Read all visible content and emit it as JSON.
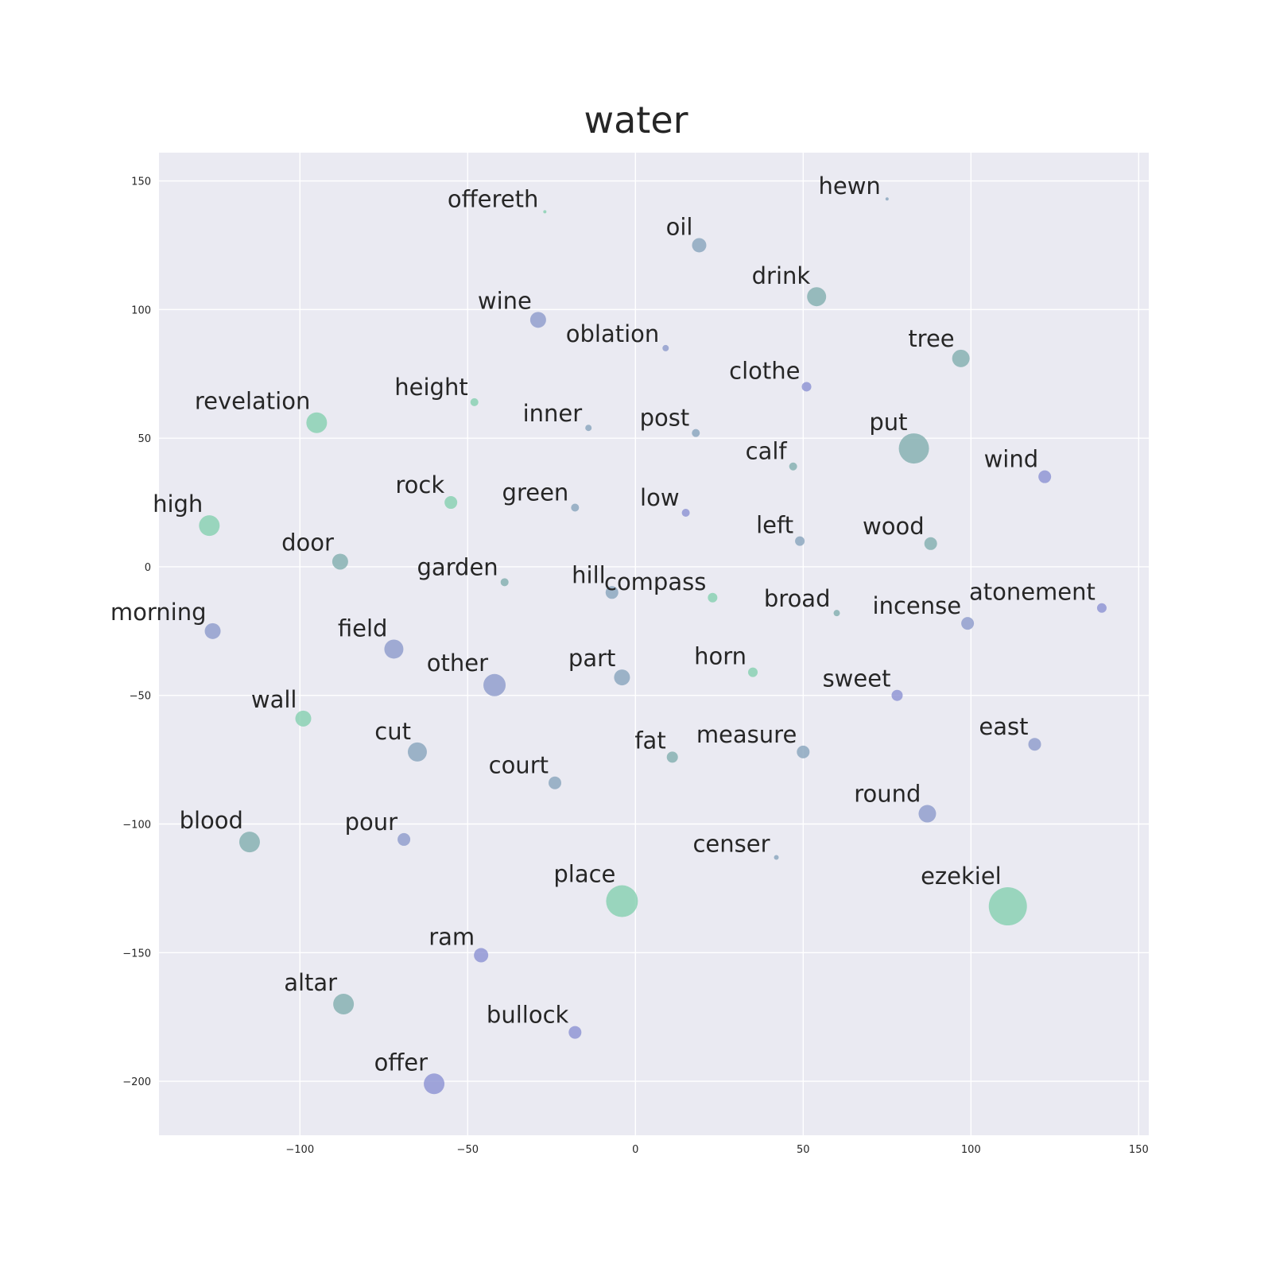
{
  "chart_data": {
    "type": "scatter",
    "title": "water",
    "xlabel": "",
    "ylabel": "",
    "xlim": [
      -142,
      153
    ],
    "ylim": [
      -221,
      161
    ],
    "xticks": [
      -100,
      -50,
      0,
      50,
      100,
      150
    ],
    "yticks": [
      -200,
      -150,
      -100,
      -50,
      0,
      50,
      100,
      150
    ],
    "grid": true,
    "background": "#eaeaf2",
    "palette": {
      "green": "#88d1b1",
      "teal": "#84b0b0",
      "slate": "#8aa6bd",
      "blue": "#8f9ccc",
      "violet": "#8e94d3"
    },
    "points": [
      {
        "label": "offereth",
        "x": -27,
        "y": 138,
        "size": 2,
        "color": "green"
      },
      {
        "label": "hewn",
        "x": 75,
        "y": 143,
        "size": 2,
        "color": "slate"
      },
      {
        "label": "oil",
        "x": 19,
        "y": 125,
        "size": 9,
        "color": "slate"
      },
      {
        "label": "drink",
        "x": 54,
        "y": 105,
        "size": 12,
        "color": "teal"
      },
      {
        "label": "wine",
        "x": -29,
        "y": 96,
        "size": 10,
        "color": "blue"
      },
      {
        "label": "oblation",
        "x": 9,
        "y": 85,
        "size": 4,
        "color": "blue"
      },
      {
        "label": "tree",
        "x": 97,
        "y": 81,
        "size": 11,
        "color": "teal"
      },
      {
        "label": "clothe",
        "x": 51,
        "y": 70,
        "size": 6,
        "color": "violet"
      },
      {
        "label": "height",
        "x": -48,
        "y": 64,
        "size": 5,
        "color": "green"
      },
      {
        "label": "revelation",
        "x": -95,
        "y": 56,
        "size": 13,
        "color": "green"
      },
      {
        "label": "inner",
        "x": -14,
        "y": 54,
        "size": 4,
        "color": "slate"
      },
      {
        "label": "post",
        "x": 18,
        "y": 52,
        "size": 5,
        "color": "slate"
      },
      {
        "label": "put",
        "x": 83,
        "y": 46,
        "size": 19,
        "color": "teal"
      },
      {
        "label": "calf",
        "x": 47,
        "y": 39,
        "size": 5,
        "color": "teal"
      },
      {
        "label": "wind",
        "x": 122,
        "y": 35,
        "size": 8,
        "color": "violet"
      },
      {
        "label": "rock",
        "x": -55,
        "y": 25,
        "size": 8,
        "color": "green"
      },
      {
        "label": "green",
        "x": -18,
        "y": 23,
        "size": 5,
        "color": "slate"
      },
      {
        "label": "low",
        "x": 15,
        "y": 21,
        "size": 5,
        "color": "violet"
      },
      {
        "label": "high",
        "x": -127,
        "y": 16,
        "size": 13,
        "color": "green"
      },
      {
        "label": "left",
        "x": 49,
        "y": 10,
        "size": 6,
        "color": "slate"
      },
      {
        "label": "wood",
        "x": 88,
        "y": 9,
        "size": 8,
        "color": "teal"
      },
      {
        "label": "door",
        "x": -88,
        "y": 2,
        "size": 10,
        "color": "teal"
      },
      {
        "label": "garden",
        "x": -39,
        "y": -6,
        "size": 5,
        "color": "teal"
      },
      {
        "label": "hill",
        "x": -7,
        "y": -10,
        "size": 8,
        "color": "slate"
      },
      {
        "label": "compass",
        "x": 23,
        "y": -12,
        "size": 6,
        "color": "green"
      },
      {
        "label": "broad",
        "x": 60,
        "y": -18,
        "size": 4,
        "color": "teal"
      },
      {
        "label": "atonement",
        "x": 139,
        "y": -16,
        "size": 6,
        "color": "violet"
      },
      {
        "label": "incense",
        "x": 99,
        "y": -22,
        "size": 8,
        "color": "blue"
      },
      {
        "label": "morning",
        "x": -126,
        "y": -25,
        "size": 10,
        "color": "blue"
      },
      {
        "label": "field",
        "x": -72,
        "y": -32,
        "size": 12,
        "color": "blue"
      },
      {
        "label": "horn",
        "x": 35,
        "y": -41,
        "size": 6,
        "color": "green"
      },
      {
        "label": "part",
        "x": -4,
        "y": -43,
        "size": 10,
        "color": "slate"
      },
      {
        "label": "other",
        "x": -42,
        "y": -46,
        "size": 14,
        "color": "blue"
      },
      {
        "label": "sweet",
        "x": 78,
        "y": -50,
        "size": 7,
        "color": "violet"
      },
      {
        "label": "wall",
        "x": -99,
        "y": -59,
        "size": 10,
        "color": "green"
      },
      {
        "label": "east",
        "x": 119,
        "y": -69,
        "size": 8,
        "color": "blue"
      },
      {
        "label": "cut",
        "x": -65,
        "y": -72,
        "size": 12,
        "color": "slate"
      },
      {
        "label": "fat",
        "x": 11,
        "y": -74,
        "size": 7,
        "color": "teal"
      },
      {
        "label": "measure",
        "x": 50,
        "y": -72,
        "size": 8,
        "color": "slate"
      },
      {
        "label": "court",
        "x": -24,
        "y": -84,
        "size": 8,
        "color": "slate"
      },
      {
        "label": "round",
        "x": 87,
        "y": -96,
        "size": 11,
        "color": "blue"
      },
      {
        "label": "blood",
        "x": -115,
        "y": -107,
        "size": 13,
        "color": "teal"
      },
      {
        "label": "pour",
        "x": -69,
        "y": -106,
        "size": 8,
        "color": "blue"
      },
      {
        "label": "censer",
        "x": 42,
        "y": -113,
        "size": 3,
        "color": "slate"
      },
      {
        "label": "place",
        "x": -4,
        "y": -130,
        "size": 20,
        "color": "green"
      },
      {
        "label": "ezekiel",
        "x": 111,
        "y": -132,
        "size": 24,
        "color": "green"
      },
      {
        "label": "ram",
        "x": -46,
        "y": -151,
        "size": 9,
        "color": "violet"
      },
      {
        "label": "altar",
        "x": -87,
        "y": -170,
        "size": 13,
        "color": "teal"
      },
      {
        "label": "bullock",
        "x": -18,
        "y": -181,
        "size": 8,
        "color": "violet"
      },
      {
        "label": "offer",
        "x": -60,
        "y": -201,
        "size": 13,
        "color": "violet"
      }
    ]
  }
}
